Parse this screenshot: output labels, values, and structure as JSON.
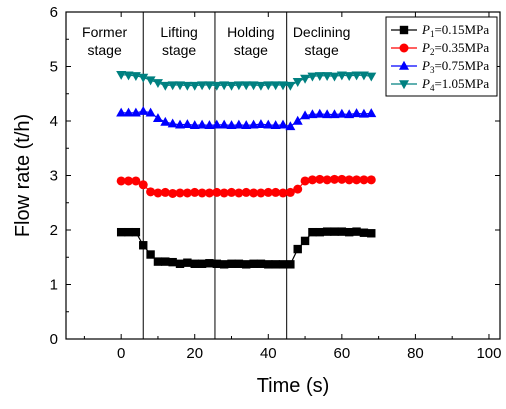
{
  "chart_data": {
    "type": "line",
    "xlabel": "Time (s)",
    "ylabel": "Flow rate (t/h)",
    "xlim": [
      -15,
      103
    ],
    "ylim": [
      0,
      6
    ],
    "x_ticks": [
      0,
      20,
      40,
      60,
      80,
      100
    ],
    "y_ticks": [
      0,
      1,
      2,
      3,
      4,
      5,
      6
    ],
    "x_tick_labels": [
      "0",
      "20",
      "40",
      "60",
      "80",
      "100"
    ],
    "y_tick_labels": [
      "0",
      "1",
      "2",
      "3",
      "4",
      "5",
      "6"
    ],
    "grid": false,
    "legend_position": "top-right",
    "stage_dividers": [
      6,
      25.5,
      45
    ],
    "stage_labels": [
      {
        "lines": [
          "Former",
          "stage"
        ],
        "x_start": -15,
        "x_end": 6
      },
      {
        "lines": [
          "Lifting",
          "stage"
        ],
        "x_start": 6,
        "x_end": 25.5
      },
      {
        "lines": [
          "Holding",
          "stage"
        ],
        "x_start": 25.5,
        "x_end": 45
      },
      {
        "lines": [
          "Declining",
          "stage"
        ],
        "x_start": 45,
        "x_end": 64
      }
    ],
    "x": [
      0,
      2,
      4,
      6,
      8,
      10,
      12,
      14,
      16,
      18,
      20,
      22,
      24,
      26,
      28,
      30,
      32,
      34,
      36,
      38,
      40,
      42,
      44,
      46,
      48,
      50,
      52,
      54,
      56,
      58,
      60,
      62,
      64,
      66,
      68
    ],
    "series": [
      {
        "name_main": "P",
        "name_sub": "1",
        "name_rest": "=0.15MPa",
        "color": "#000000",
        "marker": "square",
        "values": [
          1.96,
          1.96,
          1.96,
          1.72,
          1.55,
          1.42,
          1.42,
          1.41,
          1.38,
          1.4,
          1.38,
          1.38,
          1.39,
          1.38,
          1.37,
          1.38,
          1.38,
          1.37,
          1.38,
          1.38,
          1.37,
          1.37,
          1.37,
          1.37,
          1.65,
          1.8,
          1.96,
          1.96,
          1.97,
          1.97,
          1.97,
          1.96,
          1.97,
          1.95,
          1.94
        ]
      },
      {
        "name_main": "P",
        "name_sub": "2",
        "name_rest": "=0.35MPa",
        "color": "#ff0000",
        "marker": "circle",
        "values": [
          2.9,
          2.9,
          2.9,
          2.83,
          2.7,
          2.68,
          2.69,
          2.67,
          2.68,
          2.68,
          2.69,
          2.68,
          2.68,
          2.69,
          2.68,
          2.69,
          2.68,
          2.69,
          2.68,
          2.68,
          2.69,
          2.69,
          2.68,
          2.69,
          2.75,
          2.9,
          2.92,
          2.93,
          2.92,
          2.93,
          2.93,
          2.92,
          2.92,
          2.92,
          2.92
        ]
      },
      {
        "name_main": "P",
        "name_sub": "3",
        "name_rest": "=0.75MPa",
        "color": "#0000ff",
        "marker": "triangle-up",
        "values": [
          4.15,
          4.15,
          4.15,
          4.18,
          4.15,
          4.05,
          3.98,
          3.95,
          3.93,
          3.94,
          3.92,
          3.93,
          3.92,
          3.93,
          3.93,
          3.92,
          3.93,
          3.92,
          3.93,
          3.94,
          3.93,
          3.92,
          3.93,
          3.9,
          4.0,
          4.1,
          4.12,
          4.13,
          4.12,
          4.12,
          4.13,
          4.12,
          4.14,
          4.13,
          4.14
        ]
      },
      {
        "name_main": "P",
        "name_sub": "4",
        "name_rest": "=1.05MPa",
        "color": "#008080",
        "marker": "triangle-down",
        "values": [
          4.85,
          4.84,
          4.83,
          4.8,
          4.75,
          4.7,
          4.65,
          4.66,
          4.66,
          4.65,
          4.65,
          4.66,
          4.66,
          4.65,
          4.66,
          4.65,
          4.66,
          4.66,
          4.66,
          4.65,
          4.66,
          4.66,
          4.66,
          4.65,
          4.72,
          4.78,
          4.82,
          4.83,
          4.83,
          4.82,
          4.84,
          4.83,
          4.84,
          4.84,
          4.82
        ]
      }
    ]
  }
}
